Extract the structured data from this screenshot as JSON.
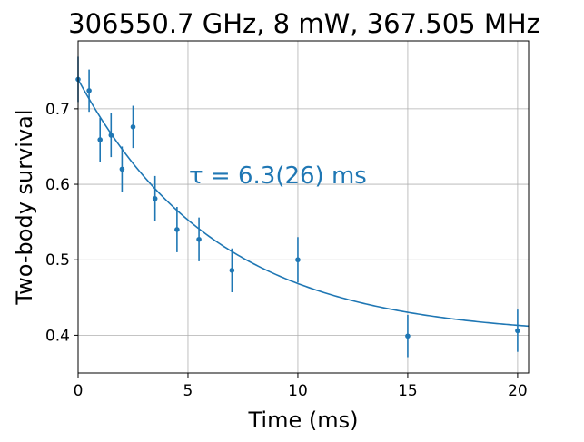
{
  "chart_data": {
    "type": "scatter",
    "title": "306550.7 GHz, 8 mW, 367.505 MHz",
    "xlabel": "Time (ms)",
    "ylabel": "Two-body survival",
    "xlim": [
      0,
      20.5
    ],
    "ylim": [
      0.35,
      0.79
    ],
    "xticks": [
      0,
      5,
      10,
      15,
      20
    ],
    "yticks": [
      0.4,
      0.5,
      0.6,
      0.7
    ],
    "grid": true,
    "color": "#1f77b4",
    "annotation": "τ = 6.3(26) ms",
    "series": [
      {
        "type": "errorbar",
        "x": [
          0,
          0.5,
          1,
          1.5,
          2,
          2.5,
          3.5,
          4.5,
          5.5,
          7,
          10,
          15,
          20
        ],
        "y": [
          0.739,
          0.724,
          0.659,
          0.665,
          0.62,
          0.676,
          0.581,
          0.54,
          0.527,
          0.486,
          0.5,
          0.399,
          0.406
        ],
        "yerr": [
          0.03,
          0.028,
          0.029,
          0.029,
          0.03,
          0.028,
          0.03,
          0.03,
          0.029,
          0.029,
          0.03,
          0.028,
          0.028
        ]
      },
      {
        "type": "fit",
        "model": "exponential decay",
        "A": 0.34,
        "tau_ms": 6.3,
        "offset": 0.399
      }
    ]
  }
}
